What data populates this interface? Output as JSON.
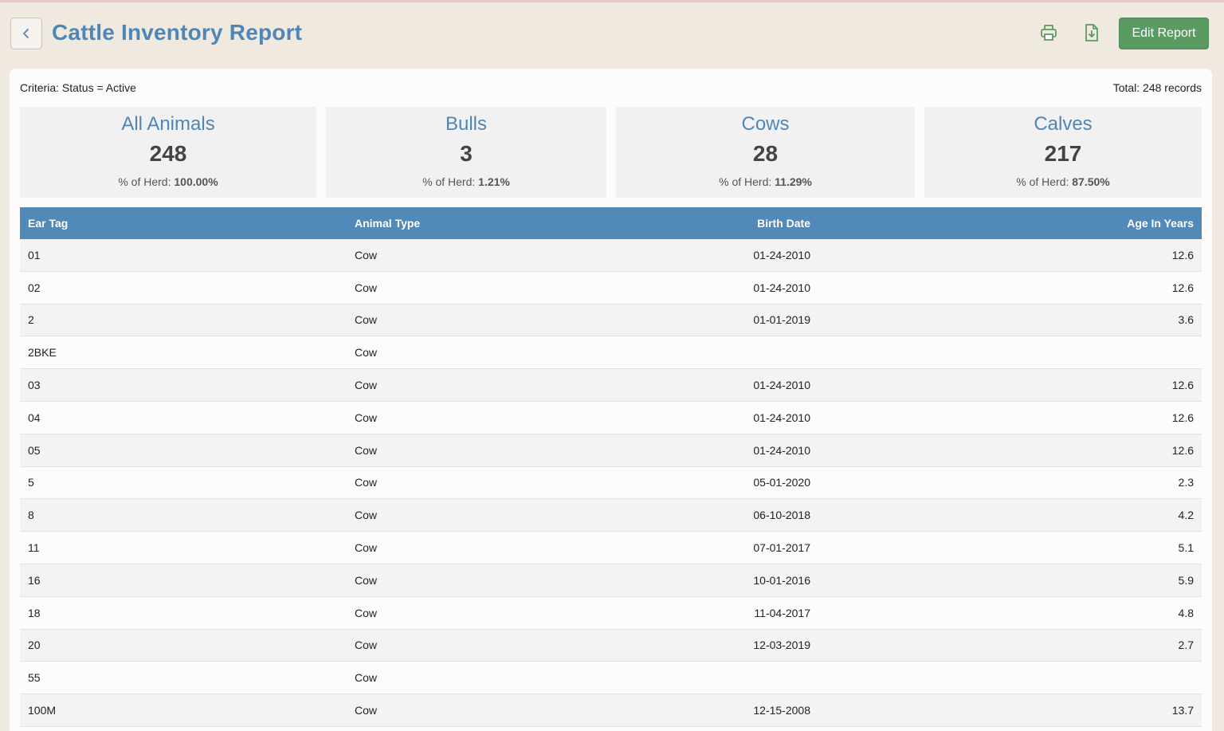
{
  "header": {
    "title": "Cattle Inventory Report",
    "edit_label": "Edit Report"
  },
  "icons": {
    "back": "chevron-left-icon",
    "print": "printer-icon",
    "download": "file-download-icon"
  },
  "colors": {
    "accent": "#4f86b8",
    "table_header": "#5189b9",
    "edit_button": "#5b9a63",
    "background": "#efe9df"
  },
  "report": {
    "criteria": "Criteria: Status = Active",
    "total": "Total: 248 records"
  },
  "stats": [
    {
      "label": "All Animals",
      "count": "248",
      "pct_label": "% of Herd: ",
      "pct": "100.00%"
    },
    {
      "label": "Bulls",
      "count": "3",
      "pct_label": "% of Herd: ",
      "pct": "1.21%"
    },
    {
      "label": "Cows",
      "count": "28",
      "pct_label": "% of Herd: ",
      "pct": "11.29%"
    },
    {
      "label": "Calves",
      "count": "217",
      "pct_label": "% of Herd: ",
      "pct": "87.50%"
    }
  ],
  "table": {
    "columns": [
      "Ear Tag",
      "Animal Type",
      "Birth Date",
      "Age In Years"
    ],
    "rows": [
      [
        "01",
        "Cow",
        "01-24-2010",
        "12.6"
      ],
      [
        "02",
        "Cow",
        "01-24-2010",
        "12.6"
      ],
      [
        "2",
        "Cow",
        "01-01-2019",
        "3.6"
      ],
      [
        "2BKE",
        "Cow",
        "",
        ""
      ],
      [
        "03",
        "Cow",
        "01-24-2010",
        "12.6"
      ],
      [
        "04",
        "Cow",
        "01-24-2010",
        "12.6"
      ],
      [
        "05",
        "Cow",
        "01-24-2010",
        "12.6"
      ],
      [
        "5",
        "Cow",
        "05-01-2020",
        "2.3"
      ],
      [
        "8",
        "Cow",
        "06-10-2018",
        "4.2"
      ],
      [
        "11",
        "Cow",
        "07-01-2017",
        "5.1"
      ],
      [
        "16",
        "Cow",
        "10-01-2016",
        "5.9"
      ],
      [
        "18",
        "Cow",
        "11-04-2017",
        "4.8"
      ],
      [
        "20",
        "Cow",
        "12-03-2019",
        "2.7"
      ],
      [
        "55",
        "Cow",
        "",
        ""
      ],
      [
        "100M",
        "Cow",
        "12-15-2008",
        "13.7"
      ]
    ]
  }
}
